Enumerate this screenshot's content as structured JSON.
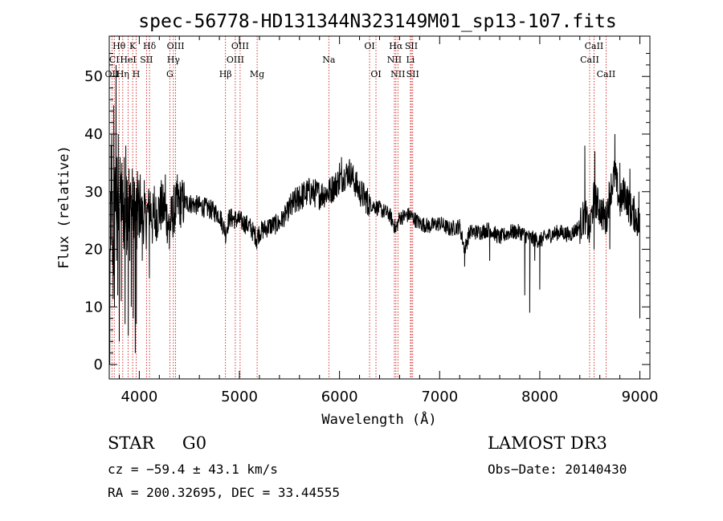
{
  "chart_data": {
    "type": "line",
    "title": "spec-56778-HD131344N323149M01_sp13-107.fits",
    "xlabel": "Wavelength (Å)",
    "ylabel": "Flux (relative)",
    "xlim": [
      3700,
      9100
    ],
    "ylim": [
      -2.5,
      57
    ],
    "x_ticks": [
      4000,
      5000,
      6000,
      7000,
      8000,
      9000
    ],
    "y_ticks": [
      0,
      10,
      20,
      30,
      40,
      50
    ],
    "grid": false,
    "series": [
      {
        "name": "flux",
        "anchors": [
          [
            3700,
            1
          ],
          [
            3720,
            28
          ],
          [
            3740,
            15
          ],
          [
            3760,
            32
          ],
          [
            3780,
            24
          ],
          [
            3800,
            30
          ],
          [
            3850,
            26
          ],
          [
            3900,
            27
          ],
          [
            3950,
            26
          ],
          [
            4000,
            27
          ],
          [
            4050,
            25
          ],
          [
            4100,
            27
          ],
          [
            4150,
            25
          ],
          [
            4200,
            27
          ],
          [
            4250,
            27
          ],
          [
            4300,
            24
          ],
          [
            4350,
            27
          ],
          [
            4400,
            28
          ],
          [
            4500,
            28
          ],
          [
            4600,
            27.5
          ],
          [
            4700,
            27
          ],
          [
            4800,
            26
          ],
          [
            4861,
            23
          ],
          [
            4900,
            25.5
          ],
          [
            5000,
            25
          ],
          [
            5100,
            24
          ],
          [
            5173,
            22
          ],
          [
            5200,
            23
          ],
          [
            5300,
            24
          ],
          [
            5400,
            24.5
          ],
          [
            5500,
            27
          ],
          [
            5600,
            29
          ],
          [
            5700,
            30
          ],
          [
            5800,
            29.5
          ],
          [
            5900,
            30
          ],
          [
            6000,
            32
          ],
          [
            6100,
            33.5
          ],
          [
            6200,
            30
          ],
          [
            6300,
            28
          ],
          [
            6400,
            27
          ],
          [
            6500,
            26
          ],
          [
            6563,
            23.5
          ],
          [
            6600,
            25.5
          ],
          [
            6700,
            26
          ],
          [
            6800,
            24.5
          ],
          [
            6900,
            24
          ],
          [
            7000,
            24.5
          ],
          [
            7100,
            23.5
          ],
          [
            7200,
            24
          ],
          [
            7250,
            20
          ],
          [
            7300,
            23
          ],
          [
            7400,
            23
          ],
          [
            7500,
            23.5
          ],
          [
            7600,
            22
          ],
          [
            7700,
            23
          ],
          [
            7800,
            23
          ],
          [
            7900,
            22
          ],
          [
            8000,
            21.5
          ],
          [
            8100,
            22.5
          ],
          [
            8200,
            23
          ],
          [
            8300,
            22.5
          ],
          [
            8400,
            24
          ],
          [
            8450,
            26
          ],
          [
            8498,
            23
          ],
          [
            8542,
            29
          ],
          [
            8600,
            27
          ],
          [
            8662,
            25
          ],
          [
            8700,
            30
          ],
          [
            8750,
            33
          ],
          [
            8800,
            28
          ],
          [
            8850,
            30
          ],
          [
            8900,
            27
          ],
          [
            8950,
            26
          ],
          [
            9000,
            24
          ]
        ],
        "spikes": [
          [
            3705,
            0
          ],
          [
            3712,
            30
          ],
          [
            3718,
            38
          ],
          [
            3725,
            40
          ],
          [
            3732,
            30
          ],
          [
            3745,
            45
          ],
          [
            3752,
            10
          ],
          [
            3762,
            31
          ],
          [
            3768,
            52
          ],
          [
            3772,
            18
          ],
          [
            3778,
            36
          ],
          [
            3785,
            12
          ],
          [
            3790,
            40
          ],
          [
            3800,
            4
          ],
          [
            3806,
            28
          ],
          [
            3812,
            33
          ],
          [
            3820,
            11
          ],
          [
            3826,
            35
          ],
          [
            3835,
            30
          ],
          [
            3845,
            20
          ],
          [
            3850,
            36
          ],
          [
            3858,
            7
          ],
          [
            3865,
            38
          ],
          [
            3873,
            19
          ],
          [
            3880,
            32
          ],
          [
            3890,
            5
          ],
          [
            3897,
            34
          ],
          [
            3905,
            18
          ],
          [
            3912,
            31
          ],
          [
            3920,
            10
          ],
          [
            3930,
            34
          ],
          [
            3940,
            8
          ],
          [
            3950,
            30
          ],
          [
            3960,
            2
          ],
          [
            3970,
            7
          ],
          [
            3975,
            20
          ],
          [
            3985,
            32
          ],
          [
            4000,
            22
          ],
          [
            4010,
            33
          ],
          [
            4030,
            18
          ],
          [
            4050,
            32
          ],
          [
            4070,
            20
          ],
          [
            4101,
            15
          ],
          [
            4110,
            30
          ],
          [
            4130,
            21
          ],
          [
            4150,
            31
          ],
          [
            4180,
            22
          ],
          [
            4220,
            32
          ],
          [
            4260,
            33
          ],
          [
            4300,
            20
          ],
          [
            4340,
            23
          ],
          [
            4380,
            33
          ],
          [
            4420,
            30
          ],
          [
            4500,
            29
          ],
          [
            4700,
            28
          ],
          [
            4861,
            21
          ],
          [
            5173,
            20
          ],
          [
            5600,
            31
          ],
          [
            5900,
            32
          ],
          [
            6000,
            35
          ],
          [
            6020,
            36
          ],
          [
            6100,
            35
          ],
          [
            6280,
            26
          ],
          [
            6563,
            23
          ],
          [
            7250,
            17
          ],
          [
            7500,
            18
          ],
          [
            7850,
            12
          ],
          [
            7900,
            9
          ],
          [
            7950,
            18
          ],
          [
            8000,
            13
          ],
          [
            8498,
            22
          ],
          [
            8450,
            38
          ],
          [
            8550,
            37
          ],
          [
            8542,
            20
          ],
          [
            8662,
            23
          ],
          [
            8700,
            20
          ],
          [
            8750,
            40
          ],
          [
            8800,
            35
          ],
          [
            8900,
            34
          ],
          [
            9000,
            8
          ],
          [
            8990,
            30
          ]
        ]
      }
    ],
    "lines": [
      {
        "label": "OII",
        "x": 3727,
        "row": 2
      },
      {
        "label": "CI",
        "x": 3750,
        "row": 1
      },
      {
        "label": "Hθ",
        "x": 3798,
        "row": 0
      },
      {
        "label": "Hη",
        "x": 3835,
        "row": 2
      },
      {
        "label": "HeI",
        "x": 3889,
        "row": 1
      },
      {
        "label": "K",
        "x": 3934,
        "row": 0
      },
      {
        "label": "H",
        "x": 3969,
        "row": 2
      },
      {
        "label": "SII",
        "x": 4072,
        "row": 1
      },
      {
        "label": "Hδ",
        "x": 4102,
        "row": 0
      },
      {
        "label": "G",
        "x": 4305,
        "row": 2
      },
      {
        "label": "Hγ",
        "x": 4341,
        "row": 1
      },
      {
        "label": "OIII",
        "x": 4363,
        "row": 0
      },
      {
        "label": "Hβ",
        "x": 4861,
        "row": 2
      },
      {
        "label": "OIII",
        "x": 4959,
        "row": 1
      },
      {
        "label": "OIII",
        "x": 5007,
        "row": 0
      },
      {
        "label": "Mg",
        "x": 5177,
        "row": 2
      },
      {
        "label": "Na",
        "x": 5893,
        "row": 1
      },
      {
        "label": "OI",
        "x": 6300,
        "row": 0
      },
      {
        "label": "OI",
        "x": 6364,
        "row": 2
      },
      {
        "label": "NII",
        "x": 6548,
        "row": 1
      },
      {
        "label": "Hα",
        "x": 6563,
        "row": 0
      },
      {
        "label": "NII",
        "x": 6583,
        "row": 2
      },
      {
        "label": "Li",
        "x": 6708,
        "row": 1
      },
      {
        "label": "SII",
        "x": 6717,
        "row": 0
      },
      {
        "label": "SII",
        "x": 6731,
        "row": 2
      },
      {
        "label": "CaII",
        "x": 8498,
        "row": 1
      },
      {
        "label": "CaII",
        "x": 8542,
        "row": 0
      },
      {
        "label": "CaII",
        "x": 8662,
        "row": 2
      }
    ],
    "colors": {
      "spectrum": "#000000",
      "line_marker": "#cc0000",
      "axes": "#000000"
    }
  },
  "info": {
    "class": "STAR",
    "subclass": "G0",
    "survey": "LAMOST DR3",
    "cz": "cz = −59.4 ± 43.1 km/s",
    "obs_date": "Obs−Date: 20140430",
    "radec": "RA = 200.32695, DEC =  33.44555"
  }
}
